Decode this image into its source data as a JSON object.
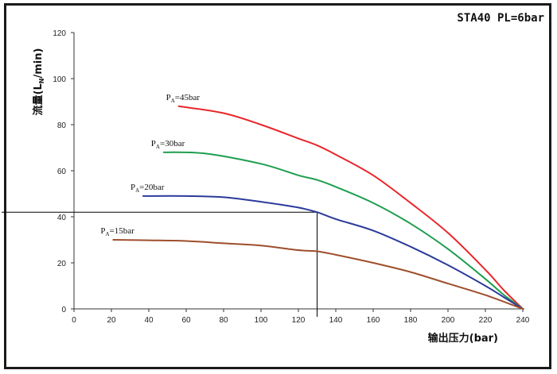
{
  "chart_data": {
    "type": "line",
    "title": "STA40 PL=6bar",
    "xlabel": "输出压力(bar)",
    "ylabel": {
      "main": "流量(L",
      "sub": "N",
      "tail": "/min)"
    },
    "xlim": [
      0,
      240
    ],
    "ylim": [
      0,
      120
    ],
    "x_ticks": [
      0,
      20,
      40,
      60,
      80,
      100,
      120,
      140,
      160,
      180,
      200,
      220,
      240
    ],
    "y_ticks": [
      0,
      20,
      40,
      60,
      80,
      100,
      120
    ],
    "grid": false,
    "series": [
      {
        "label": {
          "p": "P",
          "sub": "A",
          "rest": "=45bar"
        },
        "color": "#e8262a",
        "x": [
          56,
          80,
          100,
          120,
          130,
          140,
          160,
          180,
          200,
          220,
          230,
          240
        ],
        "y": [
          88,
          85,
          80,
          74,
          71,
          67,
          58,
          46,
          33,
          17,
          8,
          0
        ]
      },
      {
        "label": {
          "p": "P",
          "sub": "A",
          "rest": "=30bar"
        },
        "color": "#1e9e4e",
        "x": [
          48,
          70,
          100,
          120,
          130,
          140,
          160,
          180,
          200,
          220,
          230,
          240
        ],
        "y": [
          68,
          67.5,
          63,
          58,
          56,
          53,
          46,
          37,
          26,
          13,
          6,
          0
        ]
      },
      {
        "label": {
          "p": "P",
          "sub": "A",
          "rest": "=20bar"
        },
        "color": "#2b3a9a",
        "x": [
          37,
          60,
          80,
          100,
          120,
          130,
          140,
          160,
          180,
          200,
          220,
          230,
          240
        ],
        "y": [
          49,
          49,
          48.5,
          46.5,
          44,
          42,
          39,
          34,
          27,
          19,
          10,
          5,
          0
        ]
      },
      {
        "label": {
          "p": "P",
          "sub": "A",
          "rest": "=15bar"
        },
        "color": "#9e4e2c",
        "x": [
          21,
          40,
          60,
          80,
          100,
          120,
          130,
          140,
          160,
          180,
          200,
          220,
          240
        ],
        "y": [
          30,
          29.8,
          29.5,
          28.5,
          27.5,
          25.5,
          25,
          23.5,
          20,
          16,
          11,
          6,
          0
        ]
      }
    ],
    "annotations": [
      {
        "type": "reference-lines",
        "x": 130,
        "y": 42,
        "color": "#000000"
      }
    ]
  }
}
